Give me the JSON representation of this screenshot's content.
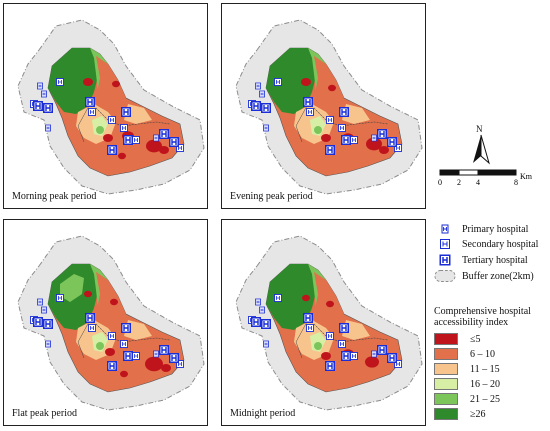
{
  "panels": [
    {
      "label": "Morning peak period"
    },
    {
      "label": "Evening peak period"
    },
    {
      "label": "Flat peak period"
    },
    {
      "label": "Midnight period"
    }
  ],
  "north_arrow": {
    "letter": "N"
  },
  "scale_bar": {
    "ticks": [
      "0",
      "2",
      "4",
      "8"
    ],
    "unit": "Km"
  },
  "legend": {
    "hospitals": [
      {
        "label": "Primary hospital",
        "icon": "primary-hospital-icon"
      },
      {
        "label": "Secondary hospital",
        "icon": "secondary-hospital-icon"
      },
      {
        "label": "Tertiary hospital",
        "icon": "tertiary-hospital-icon"
      }
    ],
    "buffer": {
      "label": "Buffer zone(2km)"
    },
    "index_title": "Comprehensive hospital accessibility index",
    "classes": [
      {
        "label": "≤5",
        "color": "#c0141c"
      },
      {
        "label": "6 – 10",
        "color": "#e2704a"
      },
      {
        "label": "11 – 15",
        "color": "#f8c48e"
      },
      {
        "label": "16 – 20",
        "color": "#d7efa4"
      },
      {
        "label": "21 – 25",
        "color": "#7cc55a"
      },
      {
        "label": "≥26",
        "color": "#2e8a2a"
      }
    ]
  },
  "colors": {
    "hospital_symbol": "#1a2dd6",
    "buffer_fill": "#e6e6e6",
    "buffer_stroke": "#8c8c8c"
  }
}
